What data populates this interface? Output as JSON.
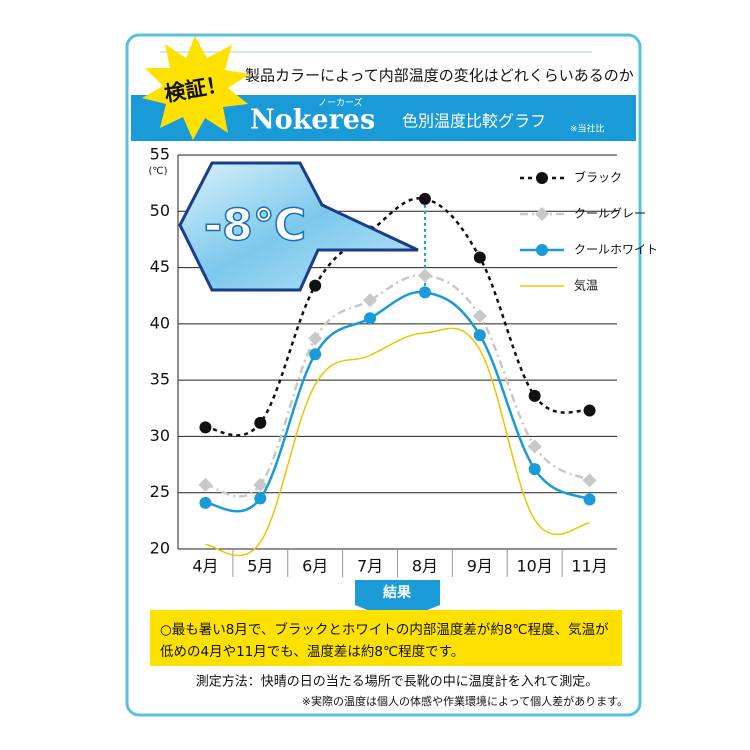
{
  "header": {
    "badge": "検証！",
    "title": "製品カラーによって内部温度の変化はどれくらいあるのか",
    "brand": "Nokeres",
    "brand_kana": "ノーカーズ",
    "subtitle": "色別温度比較グラフ",
    "note": "※当社比"
  },
  "chart_data": {
    "type": "line",
    "y_label": "(℃)",
    "annotation": "-8℃",
    "categories": [
      "4月",
      "5月",
      "6月",
      "7月",
      "8月",
      "9月",
      "10月",
      "11月"
    ],
    "series": [
      {
        "name": "ブラック",
        "color": "#111111",
        "dash": "dotted",
        "marker": "circle",
        "values": [
          30.8,
          31.2,
          43.4,
          48.2,
          51.1,
          45.9,
          33.6,
          32.3
        ]
      },
      {
        "name": "クールグレー",
        "color": "#c8c8c8",
        "dash": "dashdot",
        "marker": "diamond",
        "values": [
          25.7,
          25.7,
          38.7,
          42.1,
          44.3,
          40.7,
          29.1,
          26.1
        ]
      },
      {
        "name": "クールホワイト",
        "color": "#1a9ad6",
        "dash": "solid",
        "marker": "circle",
        "values": [
          24.1,
          24.5,
          37.3,
          40.5,
          42.8,
          39.0,
          27.1,
          24.4
        ]
      },
      {
        "name": "気温",
        "color": "#f0c400",
        "dash": "solid",
        "marker": null,
        "values": [
          20.4,
          20.6,
          34.6,
          37.2,
          39.2,
          37.7,
          22.6,
          22.3
        ]
      }
    ],
    "ylim": [
      20,
      55
    ],
    "yticks": [
      20,
      25,
      30,
      35,
      40,
      45,
      50,
      55
    ],
    "grid": true
  },
  "result": {
    "label": "結果",
    "lines": [
      "○最も暑い8月で、ブラックとホワイトの内部温度差が約8℃程度、気温が",
      "低めの4月や11月でも、温度差は約8℃程度です。"
    ]
  },
  "footer": {
    "method": "測定方法：快晴の日の当たる場所で長靴の中に温度計を入れて測定。",
    "note": "※実際の温度は個人の体感や作業環境によって個人差があります。"
  }
}
